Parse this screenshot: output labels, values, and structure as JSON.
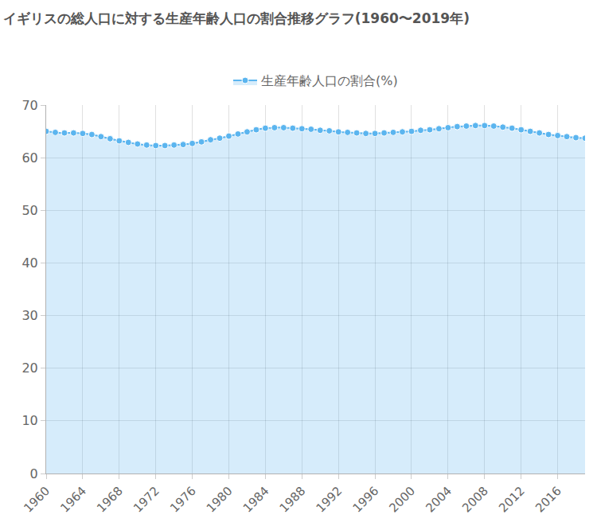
{
  "chart_data": {
    "type": "area",
    "title": "イギリスの総人口に対する生産年齢人口の割合推移グラフ(1960〜2019年)",
    "x": [
      1960,
      1961,
      1962,
      1963,
      1964,
      1965,
      1966,
      1967,
      1968,
      1969,
      1970,
      1971,
      1972,
      1973,
      1974,
      1975,
      1976,
      1977,
      1978,
      1979,
      1980,
      1981,
      1982,
      1983,
      1984,
      1985,
      1986,
      1987,
      1988,
      1989,
      1990,
      1991,
      1992,
      1993,
      1994,
      1995,
      1996,
      1997,
      1998,
      1999,
      2000,
      2001,
      2002,
      2003,
      2004,
      2005,
      2006,
      2007,
      2008,
      2009,
      2010,
      2011,
      2012,
      2013,
      2014,
      2015,
      2016,
      2017,
      2018,
      2019
    ],
    "series": [
      {
        "name": "生産年齢人口の割合(%)",
        "color": "#5bb5ef",
        "marker": "circle",
        "values": [
          65.0,
          64.8,
          64.7,
          64.7,
          64.6,
          64.4,
          64.0,
          63.6,
          63.2,
          62.9,
          62.6,
          62.4,
          62.3,
          62.3,
          62.4,
          62.5,
          62.7,
          63.0,
          63.4,
          63.7,
          64.1,
          64.5,
          64.9,
          65.3,
          65.6,
          65.7,
          65.7,
          65.6,
          65.5,
          65.4,
          65.2,
          65.1,
          64.9,
          64.8,
          64.7,
          64.6,
          64.6,
          64.7,
          64.8,
          64.9,
          65.0,
          65.2,
          65.3,
          65.5,
          65.7,
          65.9,
          66.0,
          66.1,
          66.1,
          66.0,
          65.8,
          65.6,
          65.3,
          65.0,
          64.7,
          64.4,
          64.2,
          64.0,
          63.8,
          63.7
        ]
      }
    ],
    "xlim": [
      1960,
      2019
    ],
    "xticks": [
      1960,
      1964,
      1968,
      1972,
      1976,
      1980,
      1984,
      1988,
      1992,
      1996,
      2000,
      2004,
      2008,
      2012,
      2016
    ],
    "ylim": [
      0,
      70
    ],
    "yticks": [
      0,
      10,
      20,
      30,
      40,
      50,
      60,
      70
    ],
    "grid": true,
    "legend": "top"
  }
}
